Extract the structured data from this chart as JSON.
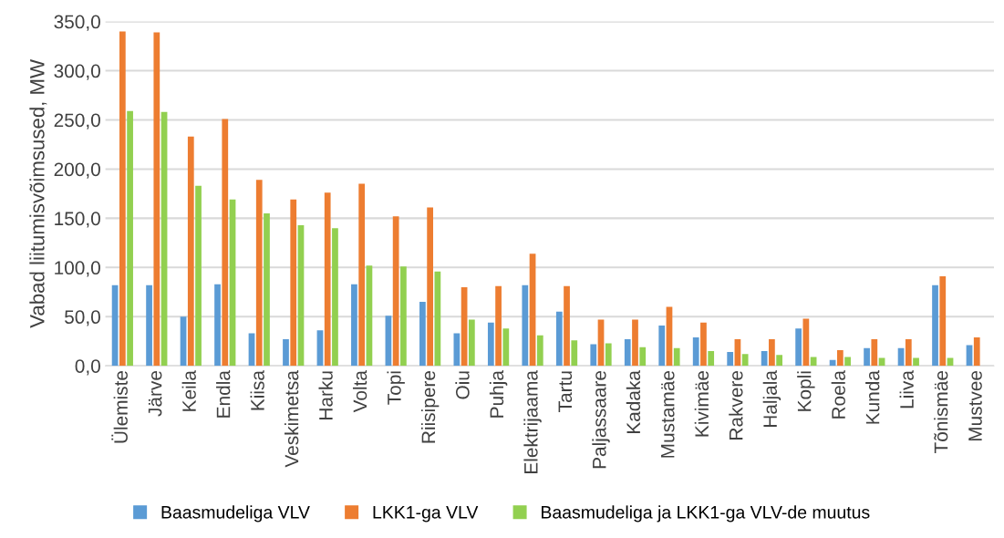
{
  "chart_data": {
    "type": "bar",
    "ylabel": "Vabad liitumisvõimsused, MW",
    "categories": [
      "Ülemiste",
      "Järve",
      "Keila",
      "Endla",
      "Kiisa",
      "Veskimetsa",
      "Harku",
      "Volta",
      "Topi",
      "Riisipere",
      "Oiu",
      "Puhja",
      "Elektrijaama",
      "Tartu",
      "Paljassaare",
      "Kadaka",
      "Mustamäe",
      "Kivimäe",
      "Rakvere",
      "Haljala",
      "Kopli",
      "Roela",
      "Kunda",
      "Liiva",
      "Tõnismäe",
      "Mustvee"
    ],
    "series": [
      {
        "name": "Baasmudeliga VLV",
        "color": "#5b9bd5",
        "values": [
          82,
          82,
          50,
          83,
          33,
          27,
          36,
          83,
          51,
          65,
          33,
          44,
          82,
          55,
          22,
          27,
          41,
          29,
          14,
          15,
          38,
          6,
          18,
          18,
          82,
          21
        ]
      },
      {
        "name": "LKK1-ga VLV",
        "color": "#ed7d31",
        "values": [
          340,
          339,
          233,
          251,
          189,
          169,
          176,
          185,
          152,
          161,
          80,
          81,
          114,
          81,
          47,
          47,
          60,
          44,
          27,
          27,
          48,
          16,
          27,
          27,
          91,
          29
        ]
      },
      {
        "name": "Baasmudeliga ja LKK1-ga VLV-de muutus",
        "color": "#92d050",
        "values": [
          259,
          258,
          183,
          169,
          155,
          143,
          140,
          102,
          101,
          96,
          47,
          38,
          31,
          26,
          23,
          19,
          18,
          15,
          12,
          11,
          9,
          9,
          8,
          8,
          8,
          null
        ]
      }
    ],
    "ylim": [
      0,
      350
    ],
    "yticks": [
      {
        "value": 0,
        "label": "0,0"
      },
      {
        "value": 50,
        "label": "50,0"
      },
      {
        "value": 100,
        "label": "100,0"
      },
      {
        "value": 150,
        "label": "150,0"
      },
      {
        "value": 200,
        "label": "200,0"
      },
      {
        "value": 250,
        "label": "250,0"
      },
      {
        "value": 300,
        "label": "300,0"
      },
      {
        "value": 350,
        "label": "350,0"
      }
    ],
    "grid": "y",
    "legend": "bottom"
  }
}
